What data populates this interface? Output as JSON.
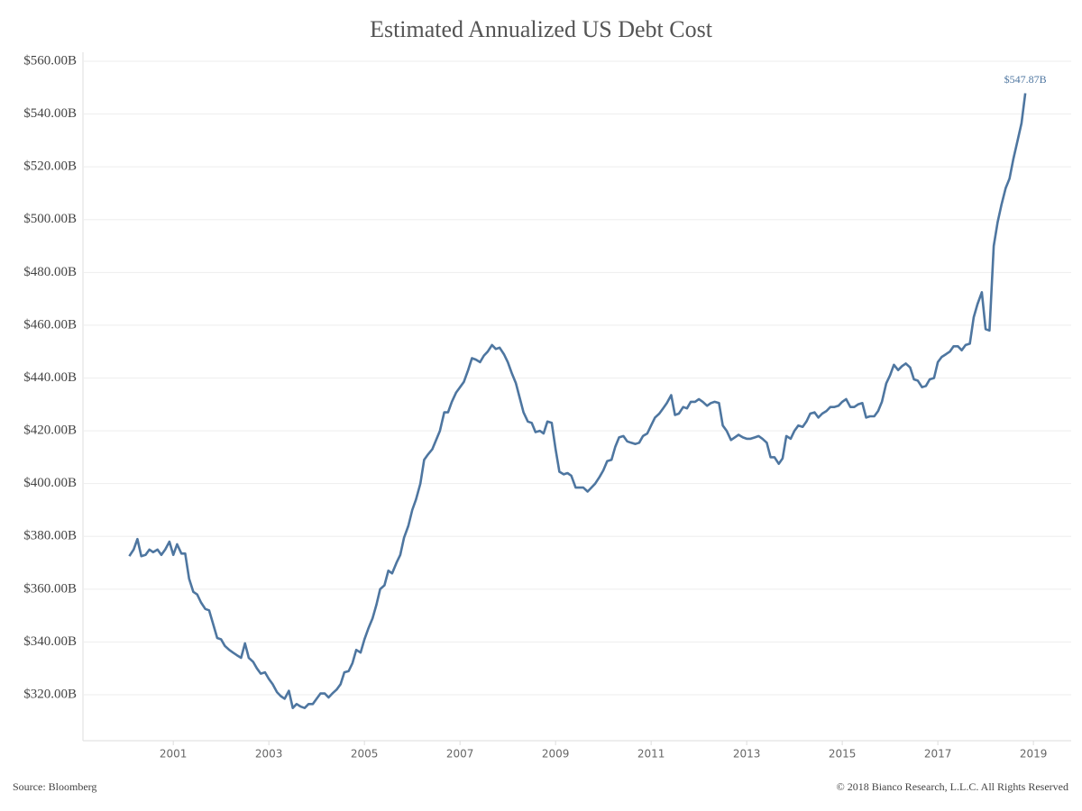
{
  "chart_data": {
    "type": "line",
    "title": "Estimated Annualized US Debt Cost",
    "source": "Source: Bloomberg",
    "copyright": "© 2018 Bianco Research, L.L.C. All Rights Reserved",
    "xlim": [
      1999.11,
      2019.79
    ],
    "xticks": [
      2001,
      2003,
      2005,
      2007,
      2009,
      2011,
      2013,
      2015,
      2017,
      2019
    ],
    "ylim": [
      302.6,
      563.4
    ],
    "yticks": [
      {
        "value": 320,
        "label": "$320.00B"
      },
      {
        "value": 340,
        "label": "$340.00B"
      },
      {
        "value": 360,
        "label": "$360.00B"
      },
      {
        "value": 380,
        "label": "$380.00B"
      },
      {
        "value": 400,
        "label": "$400.00B"
      },
      {
        "value": 420,
        "label": "$420.00B"
      },
      {
        "value": 440,
        "label": "$440.00B"
      },
      {
        "value": 460,
        "label": "$460.00B"
      },
      {
        "value": 480,
        "label": "$480.00B"
      },
      {
        "value": 500,
        "label": "$500.00B"
      },
      {
        "value": 520,
        "label": "$520.00B"
      },
      {
        "value": 540,
        "label": "$540.00B"
      },
      {
        "value": 560,
        "label": "$560.00B"
      }
    ],
    "grid": true,
    "x": [
      2000.08,
      2000.17,
      2000.25,
      2000.33,
      2000.42,
      2000.5,
      2000.58,
      2000.67,
      2000.75,
      2000.83,
      2000.92,
      2001.0,
      2001.08,
      2001.17,
      2001.25,
      2001.33,
      2001.42,
      2001.5,
      2001.58,
      2001.67,
      2001.75,
      2001.83,
      2001.92,
      2002.0,
      2002.08,
      2002.17,
      2002.25,
      2002.33,
      2002.42,
      2002.5,
      2002.58,
      2002.67,
      2002.75,
      2002.83,
      2002.92,
      2003.0,
      2003.08,
      2003.17,
      2003.25,
      2003.33,
      2003.42,
      2003.5,
      2003.58,
      2003.67,
      2003.75,
      2003.83,
      2003.92,
      2004.0,
      2004.08,
      2004.17,
      2004.25,
      2004.33,
      2004.42,
      2004.5,
      2004.58,
      2004.67,
      2004.75,
      2004.83,
      2004.92,
      2005.0,
      2005.08,
      2005.17,
      2005.25,
      2005.33,
      2005.42,
      2005.5,
      2005.58,
      2005.67,
      2005.75,
      2005.83,
      2005.92,
      2006.0,
      2006.08,
      2006.17,
      2006.25,
      2006.33,
      2006.42,
      2006.5,
      2006.58,
      2006.67,
      2006.75,
      2006.83,
      2006.92,
      2007.0,
      2007.08,
      2007.17,
      2007.25,
      2007.33,
      2007.42,
      2007.5,
      2007.58,
      2007.67,
      2007.75,
      2007.83,
      2007.92,
      2008.0,
      2008.08,
      2008.17,
      2008.25,
      2008.33,
      2008.42,
      2008.5,
      2008.58,
      2008.67,
      2008.75,
      2008.83,
      2008.92,
      2009.0,
      2009.08,
      2009.17,
      2009.25,
      2009.33,
      2009.42,
      2009.5,
      2009.58,
      2009.67,
      2009.75,
      2009.83,
      2009.92,
      2010.0,
      2010.08,
      2010.17,
      2010.25,
      2010.33,
      2010.42,
      2010.5,
      2010.58,
      2010.67,
      2010.75,
      2010.83,
      2010.92,
      2011.0,
      2011.08,
      2011.17,
      2011.25,
      2011.33,
      2011.42,
      2011.5,
      2011.58,
      2011.67,
      2011.75,
      2011.83,
      2011.92,
      2012.0,
      2012.08,
      2012.17,
      2012.25,
      2012.33,
      2012.42,
      2012.5,
      2012.58,
      2012.67,
      2012.75,
      2012.83,
      2012.92,
      2013.0,
      2013.08,
      2013.17,
      2013.25,
      2013.33,
      2013.42,
      2013.5,
      2013.58,
      2013.67,
      2013.75,
      2013.83,
      2013.92,
      2014.0,
      2014.08,
      2014.17,
      2014.25,
      2014.33,
      2014.42,
      2014.5,
      2014.58,
      2014.67,
      2014.75,
      2014.83,
      2014.92,
      2015.0,
      2015.08,
      2015.17,
      2015.25,
      2015.33,
      2015.42,
      2015.5,
      2015.58,
      2015.67,
      2015.75,
      2015.83,
      2015.92,
      2016.0,
      2016.08,
      2016.17,
      2016.25,
      2016.33,
      2016.42,
      2016.5,
      2016.58,
      2016.67,
      2016.75,
      2016.83,
      2016.92,
      2017.0,
      2017.08,
      2017.17,
      2017.25,
      2017.33,
      2017.42,
      2017.5,
      2017.58,
      2017.67,
      2017.75,
      2017.83,
      2017.92,
      2018.0,
      2018.08,
      2018.17,
      2018.25,
      2018.33,
      2018.42,
      2018.5,
      2018.58,
      2018.67,
      2018.75,
      2018.83
    ],
    "series": [
      {
        "color": "#4e76a0",
        "values": [
          372.5,
          375,
          379,
          372.5,
          373,
          375,
          374,
          375,
          373,
          375,
          378,
          373,
          377,
          373.5,
          373.5,
          364,
          359,
          358,
          355,
          352.5,
          352,
          347,
          341.5,
          341,
          338.5,
          337,
          336,
          335,
          334,
          339.5,
          334,
          332.5,
          330,
          328,
          328.5,
          326,
          324,
          321,
          319.5,
          318.5,
          321.5,
          315,
          316.5,
          315.5,
          315,
          316.5,
          316.5,
          318.5,
          320.5,
          320.5,
          319,
          320.5,
          322,
          324,
          328.5,
          329,
          332,
          337,
          336,
          341,
          345,
          349,
          354,
          360,
          361.5,
          367,
          366,
          370,
          373,
          379.5,
          384,
          390,
          394,
          400,
          409,
          411,
          413,
          416.5,
          420,
          427,
          427,
          431,
          434.5,
          436.5,
          438.5,
          443,
          447.5,
          447,
          446,
          448.5,
          450,
          452.5,
          451,
          451.5,
          449,
          446,
          442,
          438,
          432.5,
          427,
          423.5,
          423,
          419.5,
          420,
          419,
          423.5,
          423,
          413,
          404.5,
          403.5,
          404,
          403,
          398.5,
          398.5,
          398.5,
          397,
          398.5,
          400,
          402.5,
          405,
          408.5,
          409,
          414,
          417.5,
          418,
          416,
          415.5,
          415,
          415.5,
          418,
          419,
          422,
          425,
          426.5,
          428.5,
          430.5,
          433.5,
          426,
          426.5,
          429,
          428.5,
          431,
          431,
          432,
          431,
          429.5,
          430.5,
          431,
          430.5,
          422,
          420,
          416.5,
          417.5,
          418.5,
          417.5,
          417,
          417,
          417.5,
          418,
          417,
          415.5,
          410,
          410,
          407.5,
          409.5,
          418,
          417,
          420,
          422,
          421.5,
          423.5,
          426.5,
          427,
          425,
          426.5,
          427.5,
          429,
          429,
          429.5,
          431,
          432,
          429,
          429,
          430,
          430.5,
          425,
          425.5,
          425.5,
          427.5,
          431,
          438,
          441,
          445,
          443,
          444.5,
          445.5,
          444,
          439.5,
          439,
          436.5,
          437,
          439.5,
          440,
          446,
          448,
          449,
          450,
          452,
          452,
          450.5,
          452.5,
          453,
          463,
          468,
          472.5,
          458.5,
          458,
          490,
          499,
          505.5,
          512,
          515.5,
          523,
          530,
          536.5,
          547.87
        ],
        "value_labels": [
          null,
          null,
          null,
          null,
          null,
          null,
          null,
          null,
          null,
          null,
          null,
          null,
          null,
          null,
          null,
          null,
          null,
          null,
          null,
          null,
          null,
          null,
          null,
          null,
          null,
          null,
          null,
          null,
          null,
          null,
          null,
          null,
          null,
          null,
          null,
          null,
          null,
          null,
          null,
          null,
          null,
          null,
          null,
          null,
          null,
          null,
          null,
          null,
          null,
          null,
          null,
          null,
          null,
          null,
          null,
          null,
          null,
          null,
          null,
          null,
          null,
          null,
          null,
          null,
          null,
          null,
          null,
          null,
          null,
          null,
          null,
          null,
          null,
          null,
          null,
          null,
          null,
          null,
          null,
          null,
          null,
          null,
          null,
          null,
          null,
          null,
          null,
          null,
          null,
          null,
          null,
          null,
          null,
          null,
          null,
          null,
          null,
          null,
          null,
          null,
          null,
          null,
          null,
          null,
          null,
          null,
          null,
          null,
          null,
          null,
          null,
          null,
          null,
          null,
          null,
          null,
          null,
          null,
          null,
          null,
          null,
          null,
          null,
          null,
          null,
          null,
          null,
          null,
          null,
          null,
          null,
          null,
          null,
          null,
          null,
          null,
          null,
          null,
          null,
          null,
          null,
          null,
          null,
          null,
          null,
          null,
          null,
          null,
          null,
          null,
          null,
          null,
          null,
          null,
          null,
          null,
          null,
          null,
          null,
          null,
          null,
          null,
          null,
          null,
          null,
          null,
          null,
          null,
          null,
          null,
          null,
          null,
          null,
          null,
          null,
          null,
          null,
          null,
          null,
          null,
          null,
          null,
          null,
          null,
          null,
          null,
          null,
          null,
          null,
          null,
          null,
          null,
          null,
          null,
          null,
          null,
          null,
          null,
          null,
          null,
          null,
          null,
          null,
          null,
          null,
          null,
          null,
          null,
          null,
          null,
          null,
          null,
          null,
          null,
          null,
          null,
          null,
          null,
          null,
          null,
          null,
          null,
          null,
          null,
          null,
          "$547.87B"
        ]
      }
    ]
  }
}
